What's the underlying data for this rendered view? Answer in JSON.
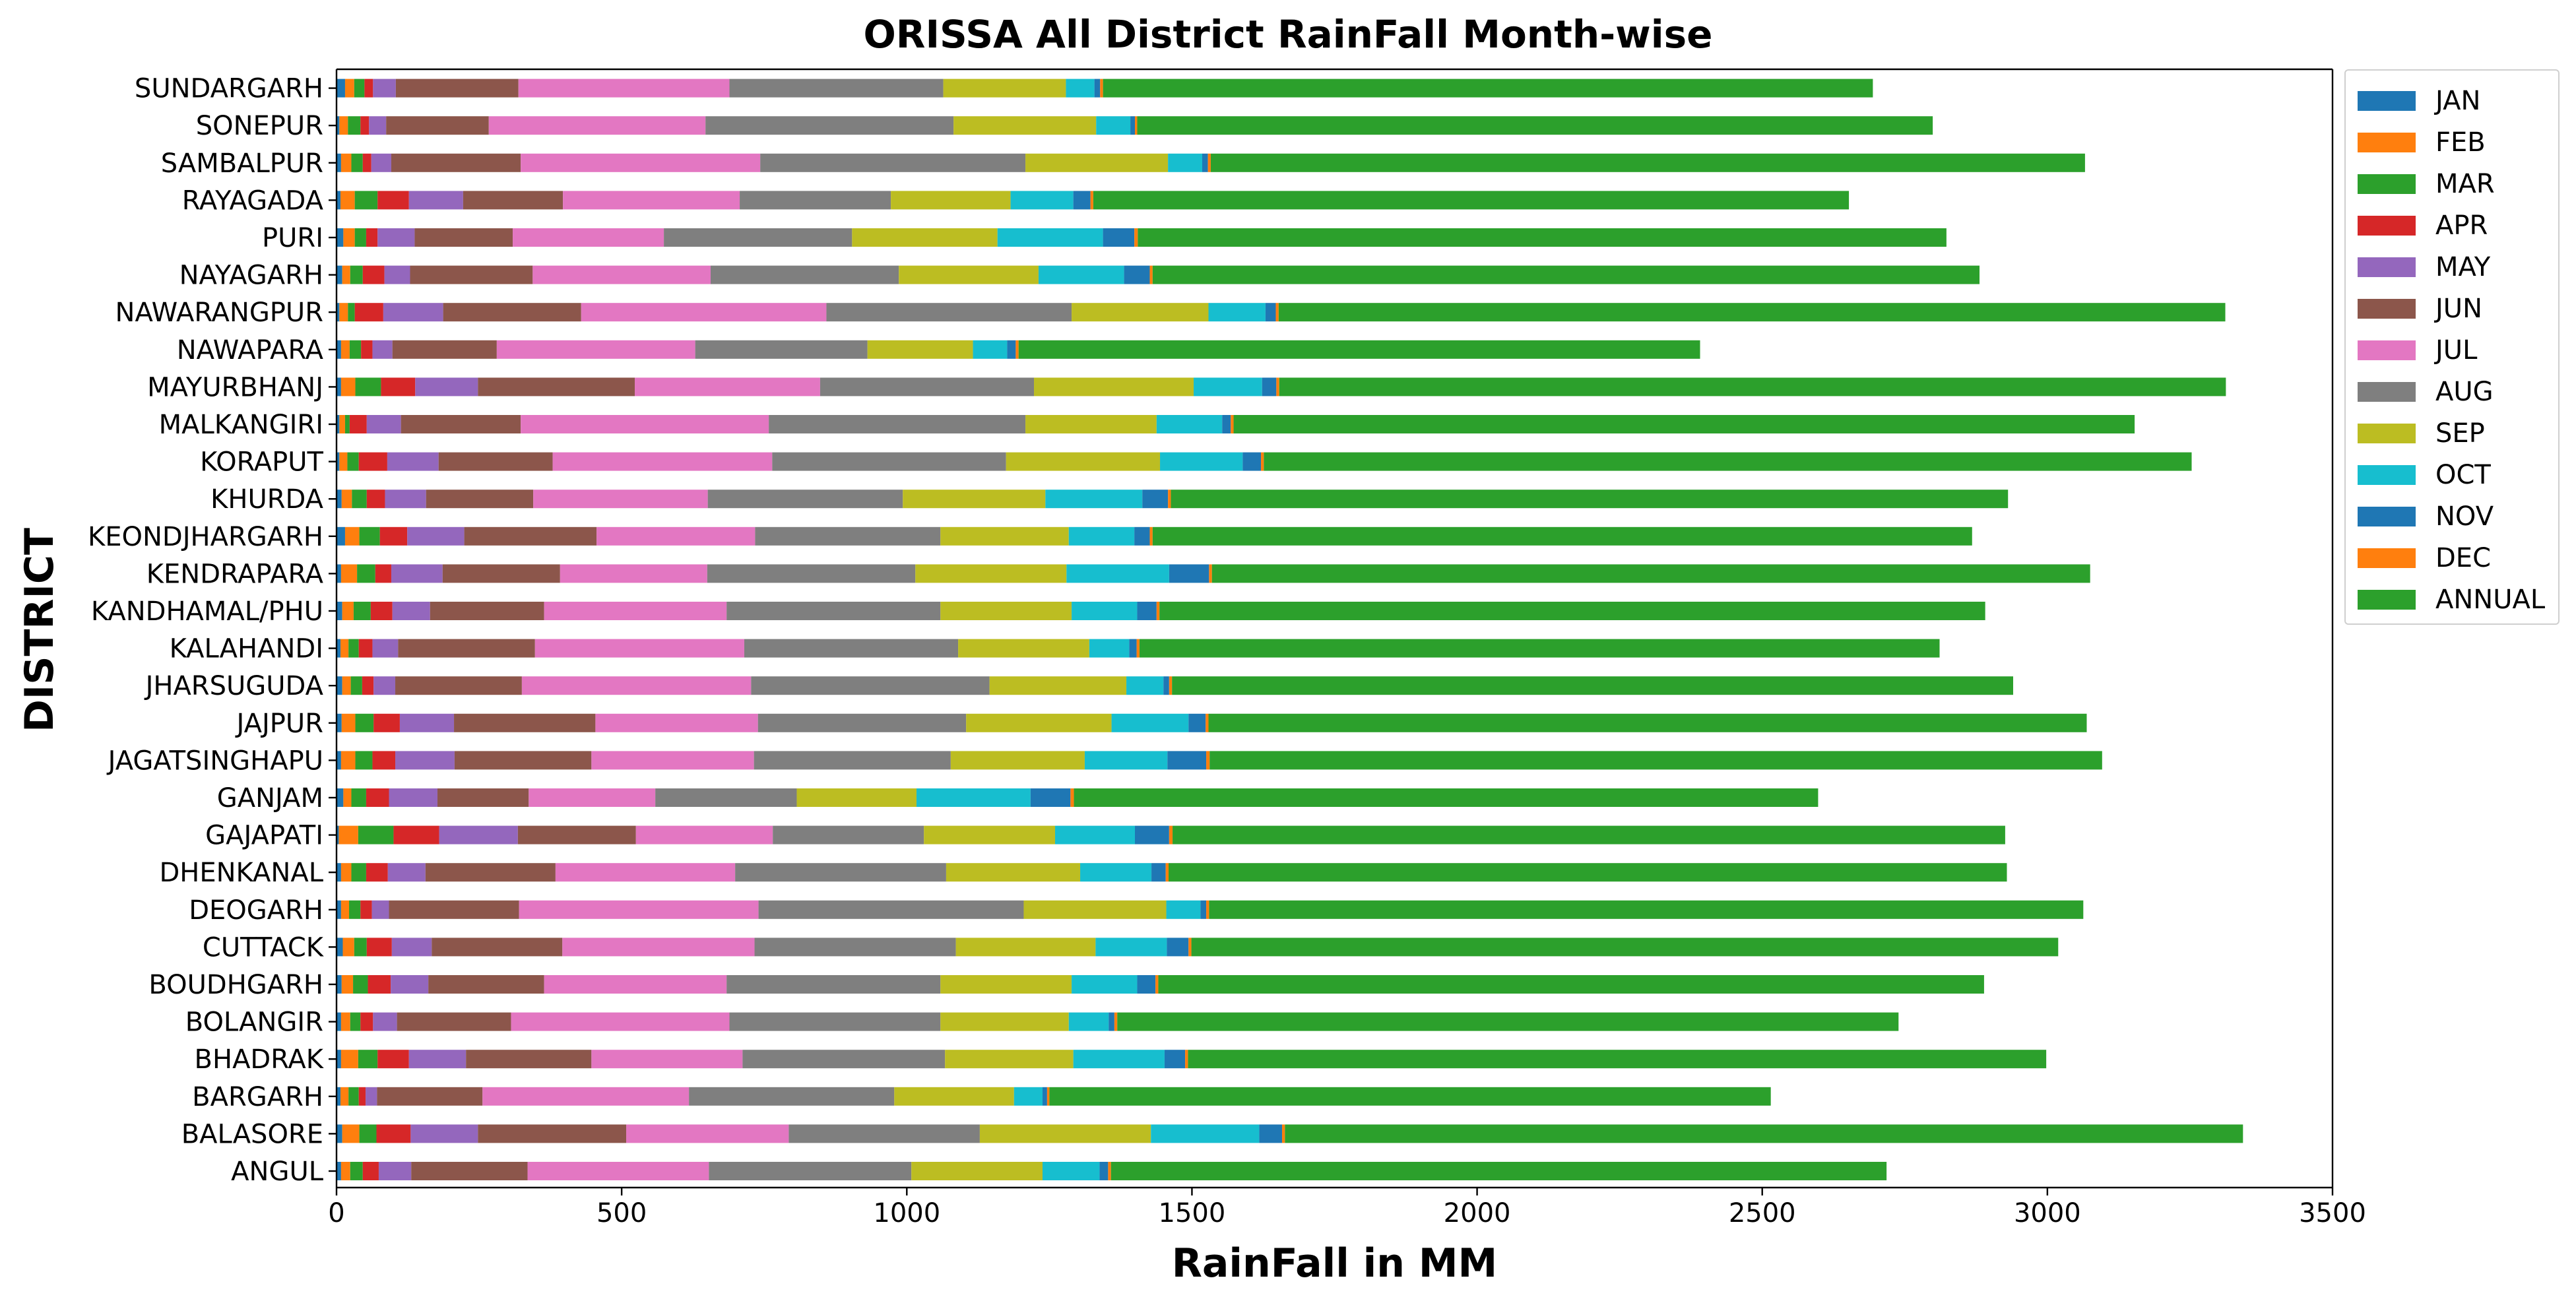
{
  "chart_data": {
    "type": "bar",
    "orientation": "horizontal",
    "stacked": true,
    "title": "ORISSA All District RainFall Month-wise",
    "xlabel": "RainFall in MM",
    "ylabel": "DISTRICT",
    "xlim": [
      0,
      3500
    ],
    "xticks": [
      "0",
      "500",
      "1000",
      "1500",
      "2000",
      "2500",
      "3000",
      "3500"
    ],
    "legend_position": "outside-right-top",
    "grid": false,
    "categories": [
      "ANGUL",
      "BALASORE",
      "BARGARH",
      "BHADRAK",
      "BOLANGIR",
      "BOUDHGARH",
      "CUTTACK",
      "DEOGARH",
      "DHENKANAL",
      "GAJAPATI",
      "GANJAM",
      "JAGATSINGHAPU",
      "JAJPUR",
      "JHARSUGUDA",
      "KALAHANDI",
      "KANDHAMAL/PHU",
      "KENDRAPARA",
      "KEONDJHARGARH",
      "KHURDA",
      "KORAPUT",
      "MALKANGIRI",
      "MAYURBHANJ",
      "NAWAPARA",
      "NAWARANGPUR",
      "NAYAGARH",
      "PURI",
      "RAYAGADA",
      "SAMBALPUR",
      "SONEPUR",
      "SUNDARGARH"
    ],
    "series": [
      {
        "name": "JAN",
        "color": "#1f77b4",
        "values": [
          8,
          10,
          7,
          8,
          8,
          9,
          11,
          8,
          8,
          4,
          12,
          8,
          9,
          10,
          7,
          10,
          8,
          15,
          9,
          5,
          5,
          8,
          8,
          5,
          10,
          12,
          7,
          8,
          5,
          15
        ]
      },
      {
        "name": "FEB",
        "color": "#ff7f0e",
        "values": [
          16,
          30,
          14,
          30,
          16,
          20,
          20,
          14,
          18,
          34,
          14,
          25,
          24,
          15,
          14,
          20,
          28,
          25,
          18,
          14,
          10,
          25,
          15,
          15,
          14,
          20,
          25,
          18,
          15,
          16
        ]
      },
      {
        "name": "MAR",
        "color": "#2ca02c",
        "values": [
          22,
          30,
          18,
          34,
          18,
          26,
          22,
          20,
          26,
          62,
          26,
          30,
          32,
          20,
          18,
          30,
          32,
          36,
          26,
          20,
          8,
          45,
          20,
          12,
          22,
          20,
          40,
          20,
          22,
          18
        ]
      },
      {
        "name": "APR",
        "color": "#d62728",
        "values": [
          28,
          60,
          12,
          55,
          22,
          40,
          44,
          20,
          38,
          80,
          40,
          40,
          46,
          20,
          24,
          38,
          28,
          48,
          32,
          50,
          30,
          60,
          20,
          50,
          38,
          20,
          55,
          15,
          15,
          15
        ]
      },
      {
        "name": "MAY",
        "color": "#9467bd",
        "values": [
          57,
          118,
          20,
          100,
          42,
          66,
          70,
          30,
          66,
          138,
          85,
          104,
          95,
          38,
          45,
          66,
          90,
          100,
          72,
          90,
          60,
          110,
          35,
          105,
          45,
          65,
          95,
          35,
          30,
          40
        ]
      },
      {
        "name": "JUN",
        "color": "#8c564b",
        "values": [
          204,
          260,
          185,
          220,
          200,
          203,
          229,
          228,
          228,
          207,
          160,
          240,
          248,
          222,
          240,
          200,
          206,
          232,
          188,
          200,
          210,
          275,
          183,
          242,
          215,
          172,
          175,
          227,
          180,
          215
        ]
      },
      {
        "name": "JUL",
        "color": "#e377c2",
        "values": [
          318,
          285,
          362,
          265,
          383,
          320,
          337,
          420,
          315,
          240,
          222,
          285,
          285,
          402,
          367,
          320,
          258,
          278,
          306,
          385,
          435,
          325,
          348,
          430,
          312,
          265,
          310,
          420,
          380,
          370
        ]
      },
      {
        "name": "AUG",
        "color": "#7f7f7f",
        "values": [
          355,
          335,
          360,
          355,
          370,
          375,
          353,
          465,
          370,
          265,
          248,
          345,
          365,
          418,
          375,
          375,
          365,
          325,
          342,
          410,
          450,
          375,
          302,
          430,
          330,
          330,
          265,
          465,
          435,
          375
        ]
      },
      {
        "name": "SEP",
        "color": "#bcbd22",
        "values": [
          230,
          300,
          210,
          225,
          225,
          230,
          245,
          250,
          235,
          230,
          210,
          235,
          255,
          240,
          230,
          230,
          265,
          225,
          250,
          270,
          230,
          280,
          185,
          240,
          245,
          255,
          210,
          250,
          250,
          215
        ]
      },
      {
        "name": "OCT",
        "color": "#17becf",
        "values": [
          100,
          190,
          50,
          160,
          70,
          115,
          125,
          60,
          125,
          140,
          200,
          145,
          135,
          65,
          70,
          115,
          180,
          115,
          170,
          145,
          115,
          120,
          60,
          100,
          150,
          185,
          110,
          60,
          60,
          50
        ]
      },
      {
        "name": "NOV",
        "color": "#1f77b4",
        "values": [
          15,
          40,
          8,
          36,
          10,
          32,
          38,
          10,
          25,
          60,
          70,
          68,
          30,
          10,
          13,
          34,
          70,
          27,
          45,
          32,
          15,
          25,
          15,
          18,
          45,
          55,
          30,
          10,
          8,
          10
        ]
      },
      {
        "name": "DEC",
        "color": "#ff7f0e",
        "values": [
          5,
          5,
          4,
          5,
          5,
          5,
          5,
          5,
          5,
          6,
          6,
          6,
          5,
          5,
          5,
          5,
          5,
          5,
          5,
          5,
          5,
          5,
          5,
          5,
          5,
          6,
          5,
          5,
          4,
          5
        ]
      },
      {
        "name": "ANNUAL",
        "color": "#2ca02c",
        "values": [
          1360,
          1680,
          1265,
          1505,
          1370,
          1448,
          1520,
          1533,
          1470,
          1460,
          1305,
          1565,
          1540,
          1475,
          1403,
          1448,
          1540,
          1437,
          1468,
          1627,
          1580,
          1660,
          1195,
          1660,
          1450,
          1418,
          1325,
          1533,
          1395,
          1350
        ]
      }
    ]
  }
}
